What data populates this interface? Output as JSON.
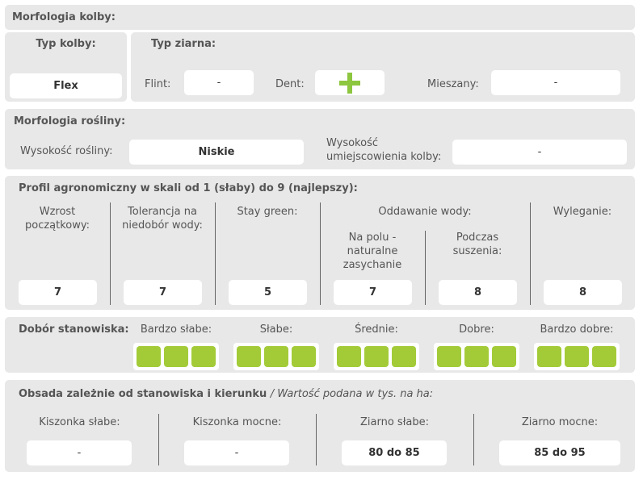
{
  "kolba": {
    "title": "Morfologia kolby:",
    "typ_kolby_label": "Typ kolby:",
    "typ_kolby_value": "Flex",
    "typ_ziarna_label": "Typ ziarna:",
    "flint_label": "Flint:",
    "flint_value": "-",
    "dent_label": "Dent:",
    "dent_icon": "plus-icon",
    "mieszany_label": "Mieszany:",
    "mieszany_value": "-"
  },
  "roslina": {
    "title": "Morfologia rośliny:",
    "wysokosc_label": "Wysokość rośliny:",
    "wysokosc_value": "Niskie",
    "kolba_label": "Wysokość umiejscowienia kolby:",
    "kolba_value": "-"
  },
  "profil": {
    "title": "Profil agronomiczny w skali od 1 (słaby) do 9 (najlepszy):",
    "oddawanie_label": "Oddawanie wody:",
    "columns": [
      {
        "label": "Wzrost początkowy:",
        "value": "7"
      },
      {
        "label": "Tolerancja na niedobór wody:",
        "value": "7"
      },
      {
        "label": "Stay green:",
        "value": "5"
      },
      {
        "label": "Na polu - naturalne zasychanie",
        "value": "7"
      },
      {
        "label": "Podczas suszenia:",
        "value": "8"
      },
      {
        "label": "Wyleganie:",
        "value": "8"
      }
    ]
  },
  "dobor": {
    "title": "Dobór stanowiska:",
    "accent": "#a3cb38",
    "levels": [
      {
        "label": "Bardzo słabe:",
        "filled": 3,
        "max": 3
      },
      {
        "label": "Słabe:",
        "filled": 3,
        "max": 3
      },
      {
        "label": "Średnie:",
        "filled": 3,
        "max": 3
      },
      {
        "label": "Dobre:",
        "filled": 3,
        "max": 3
      },
      {
        "label": "Bardzo dobre:",
        "filled": 3,
        "max": 3
      }
    ]
  },
  "obsada": {
    "title": "Obsada zależnie od stanowiska i kierunku",
    "subtitle": "/ Wartość podana w tys. na ha:",
    "columns": [
      {
        "label": "Kiszonka słabe:",
        "value": "-"
      },
      {
        "label": "Kiszonka mocne:",
        "value": "-"
      },
      {
        "label": "Ziarno słabe:",
        "value": "80 do 85"
      },
      {
        "label": "Ziarno mocne:",
        "value": "85 do 95"
      }
    ]
  }
}
